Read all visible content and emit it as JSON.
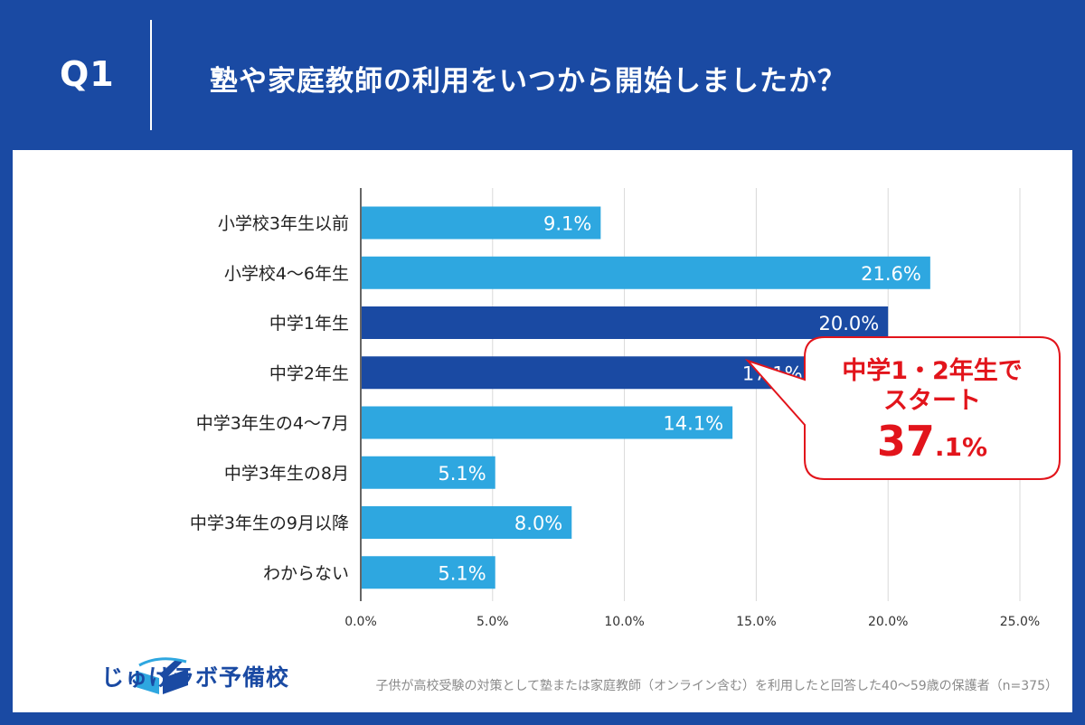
{
  "header": {
    "q_label": "Q1",
    "title": "塾や家庭教師の利用をいつから開始しましたか？"
  },
  "callout": {
    "line1": "中学1・2年生で",
    "line2": "スタート",
    "value_big": "37",
    "value_small": ".1%"
  },
  "logo": {
    "text": "じゅけラボ予備校",
    "icon": "book-logo-icon"
  },
  "footnote": "子供が高校受験の対策として塾または家庭教師（オンライン含む）を利用したと回答した40～59歳の保護者（n=375）",
  "colors": {
    "background": "#1a4aa3",
    "bar_light": "#2ea7e0",
    "bar_dark": "#1a4aa3",
    "callout_red": "#e2141b"
  },
  "chart_data": {
    "type": "bar",
    "orientation": "horizontal",
    "categories": [
      "小学校3年生以前",
      "小学校4～6年生",
      "中学1年生",
      "中学2年生",
      "中学3年生の4～7月",
      "中学3年生の8月",
      "中学3年生の9月以降",
      "わからない"
    ],
    "values": [
      9.1,
      21.6,
      20.0,
      17.1,
      14.1,
      5.1,
      8.0,
      5.1
    ],
    "value_labels": [
      "9.1%",
      "21.6%",
      "20.0%",
      "17.1%",
      "14.1%",
      "5.1%",
      "8.0%",
      "5.1%"
    ],
    "highlighted": [
      false,
      false,
      true,
      true,
      false,
      false,
      false,
      false
    ],
    "xlim": [
      0,
      25
    ],
    "xticks": [
      0,
      5,
      10,
      15,
      20,
      25
    ],
    "xtick_labels": [
      "0.0%",
      "5.0%",
      "10.0%",
      "15.0%",
      "20.0%",
      "25.0%"
    ],
    "grid": true
  }
}
